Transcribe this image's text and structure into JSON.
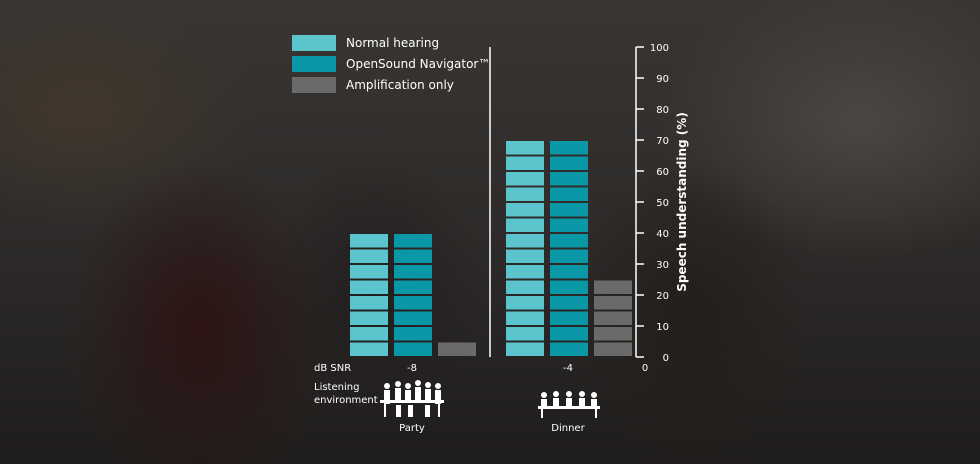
{
  "chart_data": {
    "type": "bar",
    "title": "",
    "categories": [
      "-8",
      "-4"
    ],
    "category_environments": [
      "Party",
      "Dinner"
    ],
    "x_axis_prefix": "dB SNR",
    "x_axis_end_label": "0",
    "row_label": "Listening\nenvironment",
    "ylabel": "Speech understanding (%)",
    "ylim": [
      0,
      100
    ],
    "yticks": [
      0,
      10,
      20,
      30,
      40,
      50,
      60,
      70,
      80,
      90,
      100
    ],
    "series": [
      {
        "name": "Normal hearing",
        "values": [
          40,
          70
        ],
        "color": "#5bc4cc"
      },
      {
        "name": "OpenSound Navigator™",
        "values": [
          40,
          70
        ],
        "color": "#0b98a6"
      },
      {
        "name": "Amplification only",
        "values": [
          5,
          25
        ],
        "color": "#6a6a6a"
      }
    ],
    "segment_size": 5,
    "grid": false,
    "legend_position": "top-left"
  },
  "icons": {
    "party": "party-people-icon",
    "dinner": "dinner-table-icon"
  },
  "colors": {
    "axis": "#ffffff",
    "text": "#ffffff"
  }
}
